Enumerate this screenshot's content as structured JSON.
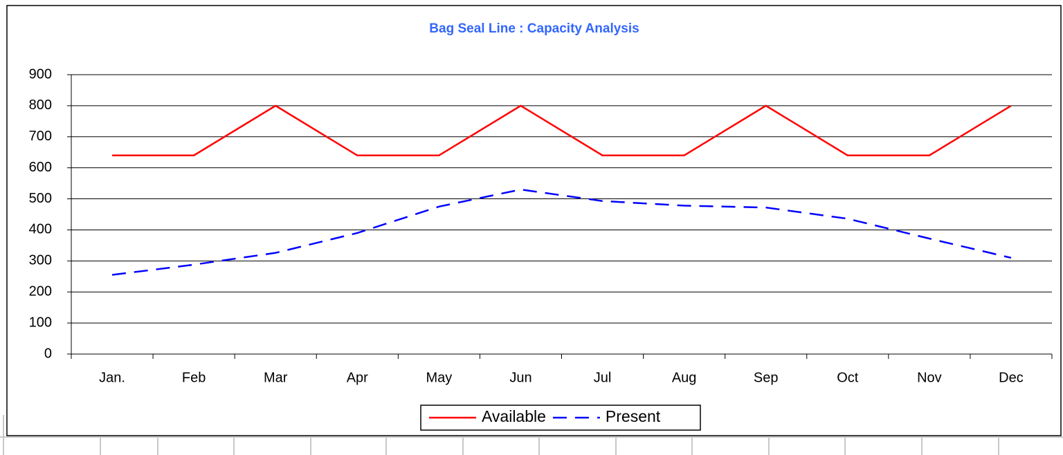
{
  "chart_data": {
    "type": "line",
    "title": "Bag Seal Line : Capacity Analysis",
    "categories": [
      "Jan.",
      "Feb",
      "Mar",
      "Apr",
      "May",
      "Jun",
      "Jul",
      "Aug",
      "Sep",
      "Oct",
      "Nov",
      "Dec"
    ],
    "series": [
      {
        "name": "Available",
        "color": "#ff0000",
        "dash": false,
        "values": [
          640,
          640,
          800,
          640,
          640,
          800,
          640,
          640,
          800,
          640,
          640,
          800
        ]
      },
      {
        "name": "Present",
        "color": "#0000ff",
        "dash": true,
        "values": [
          255,
          288,
          326,
          390,
          475,
          530,
          493,
          478,
          472,
          436,
          372,
          310
        ]
      }
    ],
    "ylim": [
      0,
      900
    ],
    "yticks": [
      0,
      100,
      200,
      300,
      400,
      500,
      600,
      700,
      800,
      900
    ],
    "grid": true,
    "legend": "bottom"
  }
}
